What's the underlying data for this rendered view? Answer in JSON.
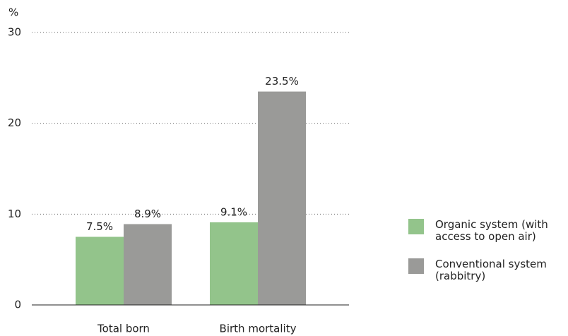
{
  "chart_data": {
    "type": "bar",
    "y_label": "%",
    "categories": [
      "Total born",
      "Birth mortality"
    ],
    "series": [
      {
        "name": "Organic system (with access to open air)",
        "color": "#93c48b",
        "values": [
          7.5,
          9.1
        ],
        "value_labels": [
          "7.5%",
          "9.1%"
        ]
      },
      {
        "name": "Conventional system (rabbitry)",
        "color": "#9a9a98",
        "values": [
          8.9,
          23.5
        ],
        "value_labels": [
          "8.9%",
          "23.5%"
        ]
      }
    ],
    "ylim": [
      0,
      30
    ],
    "yticks": [
      0,
      10,
      20,
      30
    ],
    "grid": true,
    "legend": "right"
  }
}
